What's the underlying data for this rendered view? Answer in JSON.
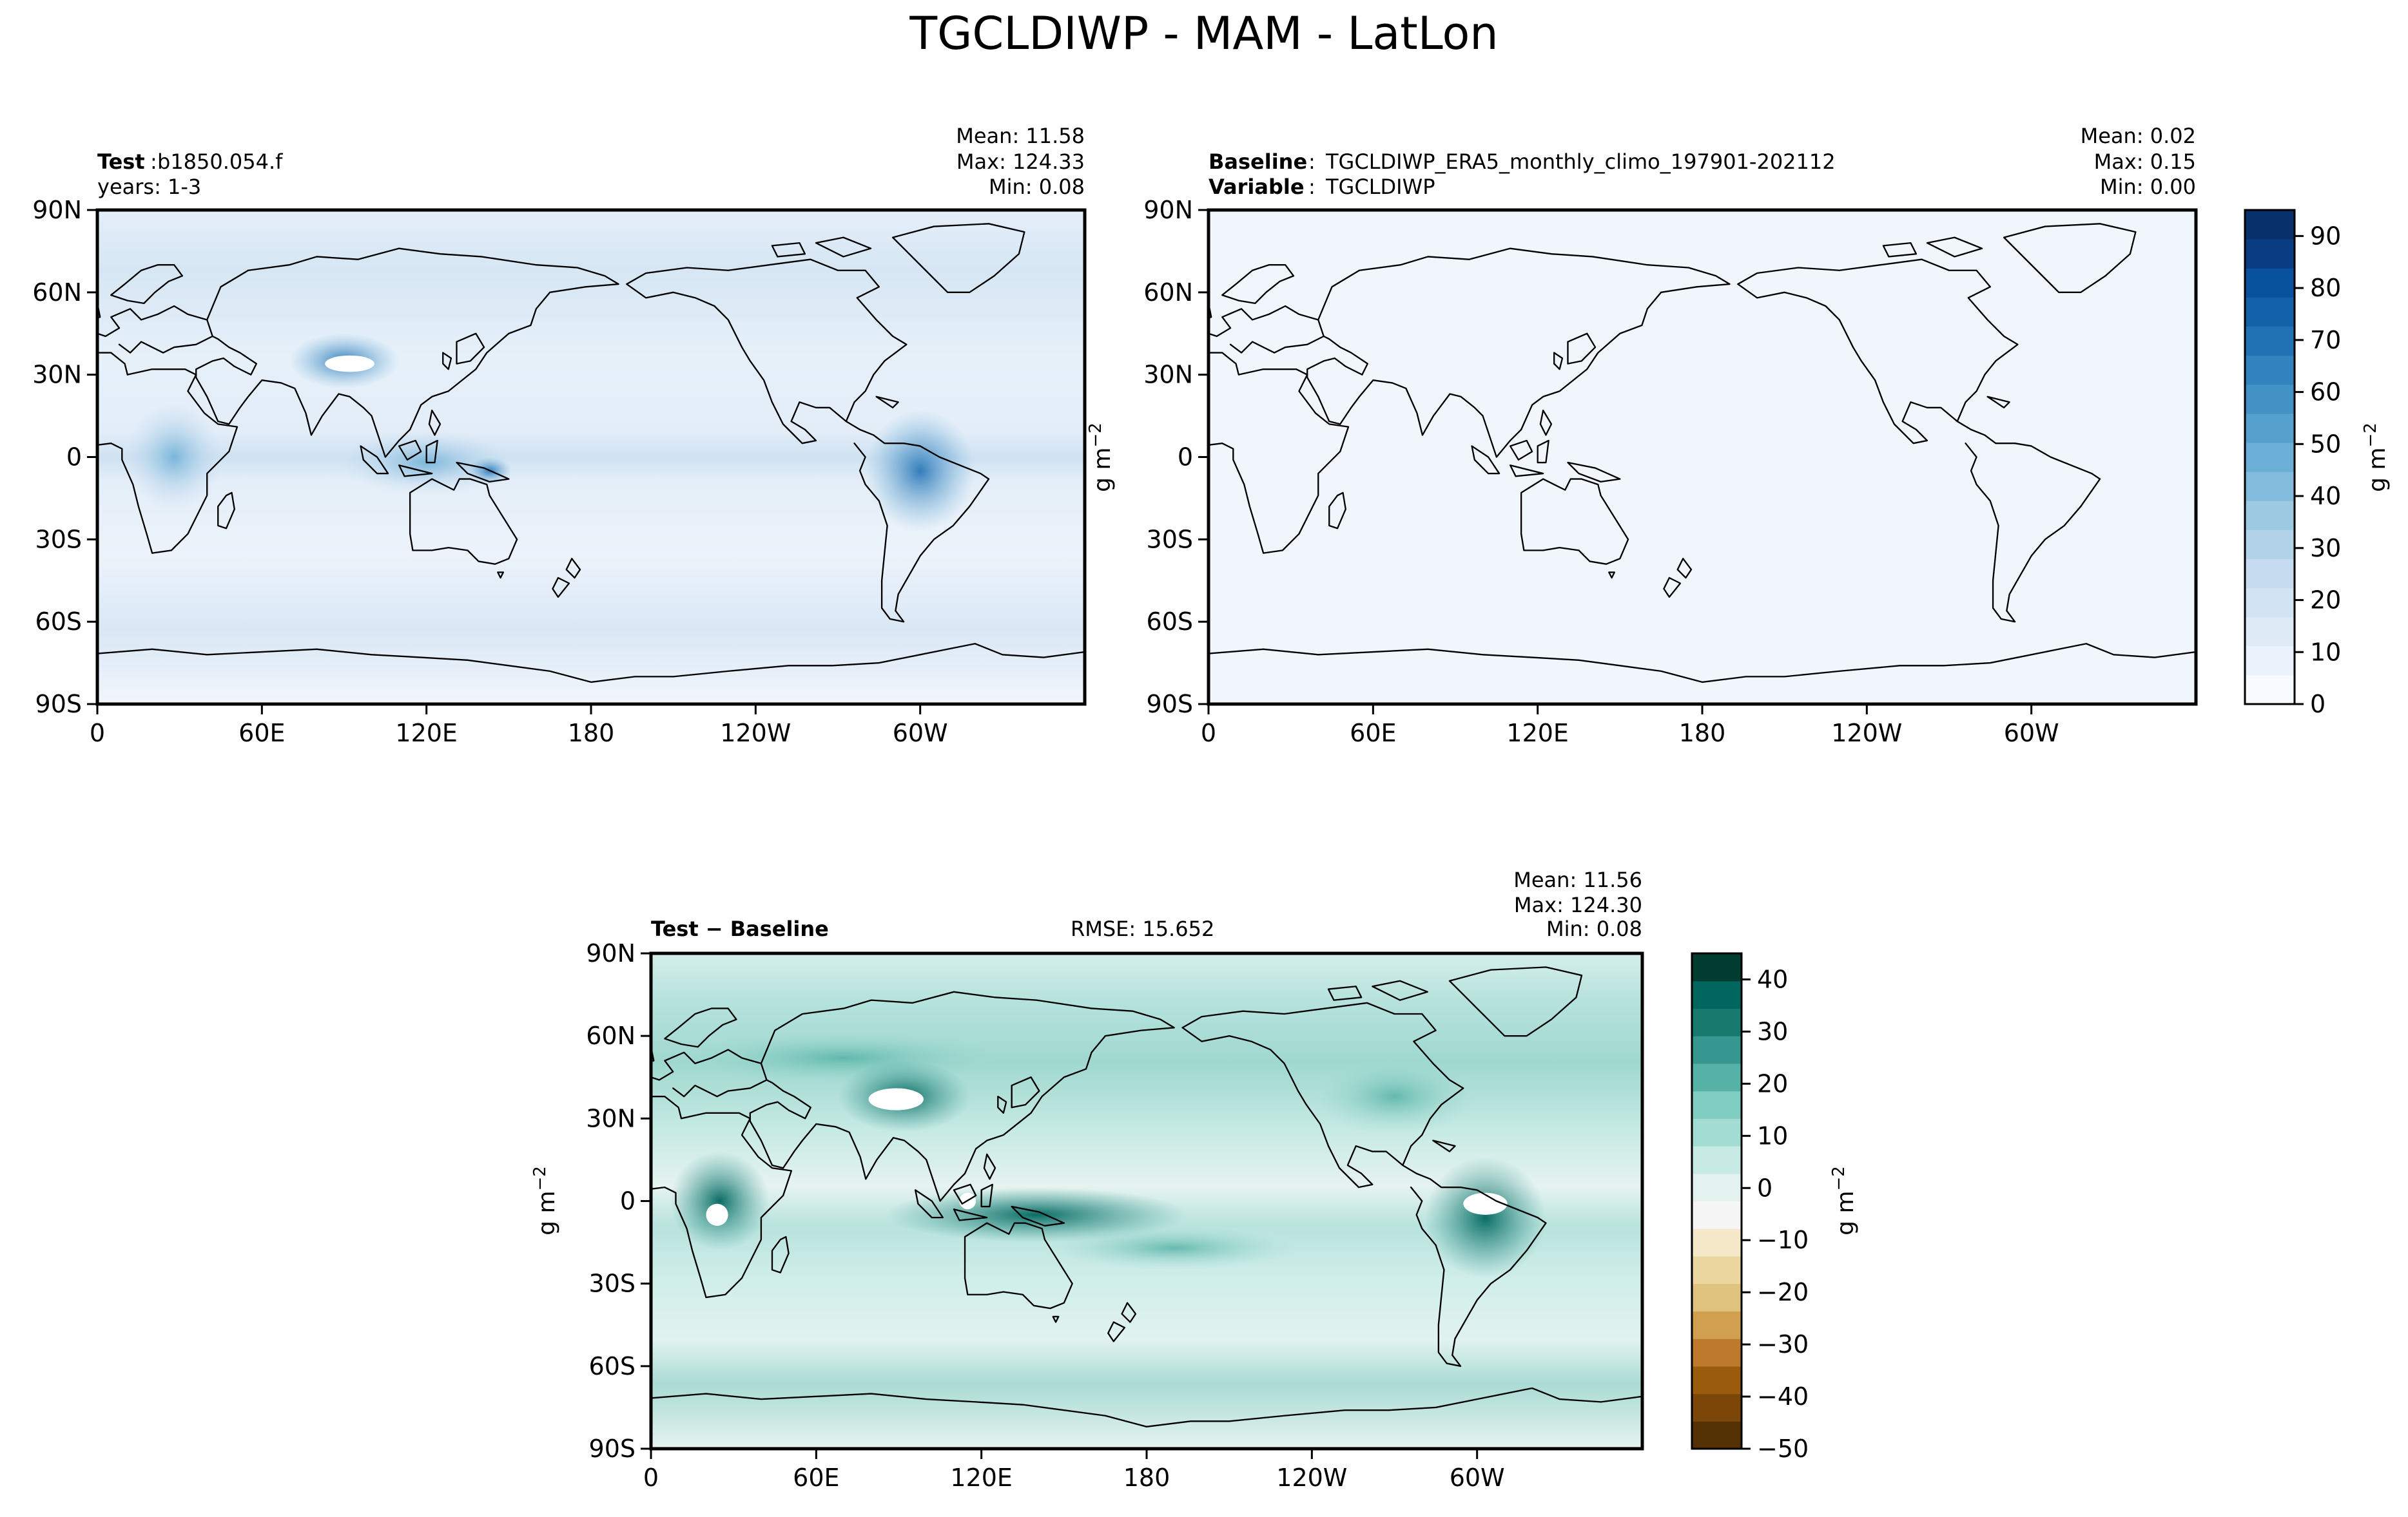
{
  "figure": {
    "title": "TGCLDIWP - MAM - LatLon"
  },
  "colors": {
    "blues": [
      "#f7fbff",
      "#eaf3fb",
      "#deebf7",
      "#d2e3f3",
      "#c6dbef",
      "#b2d2e8",
      "#9ecae1",
      "#82bbdb",
      "#6baed6",
      "#56a0ce",
      "#4292c6",
      "#3282be",
      "#2171b5",
      "#1361a9",
      "#08519c",
      "#083e81",
      "#08306b"
    ],
    "brbg": [
      "#543005",
      "#7b4607",
      "#9a5b0c",
      "#bd7a2c",
      "#d0a050",
      "#dfc27d",
      "#ecd69f",
      "#f5e8c8",
      "#f5f5f5",
      "#e3f2ef",
      "#c7eae5",
      "#a2dcd3",
      "#80cdc1",
      "#56b2a6",
      "#35978f",
      "#18796f",
      "#01665e",
      "#003c30"
    ],
    "land_outline": "#000000"
  },
  "chart_data": [
    {
      "type": "heatmap",
      "name": "test",
      "header": {
        "label_bold": "Test",
        "label_value": "b1850.054.f",
        "line2": "years: 1-3"
      },
      "stats": {
        "mean": "Mean: 11.58",
        "max": "Max: 124.33",
        "min": "Min:  0.08"
      },
      "xticks": [
        "0",
        "60E",
        "120E",
        "180",
        "120W",
        "60W"
      ],
      "yticks": [
        "90N",
        "60N",
        "30N",
        "0",
        "30S",
        "60S",
        "90S"
      ],
      "xlim": [
        0,
        360
      ],
      "ylim": [
        -90,
        90
      ],
      "colorbar": "shared_blues"
    },
    {
      "type": "heatmap",
      "name": "baseline",
      "header": {
        "label_bold": "Baseline",
        "label_value": "TGCLDIWP_ERA5_monthly_climo_197901-202112",
        "line2_bold": "Variable",
        "line2_value": "TGCLDIWP"
      },
      "stats": {
        "mean": "Mean:  0.02",
        "max": "Max:  0.15",
        "min": "Min:  0.00"
      },
      "xticks": [
        "0",
        "60E",
        "120E",
        "180",
        "120W",
        "60W"
      ],
      "yticks": [
        "90N",
        "60N",
        "30N",
        "0",
        "30S",
        "60S",
        "90S"
      ],
      "ylabel": "g m$^{-2}$",
      "xlim": [
        0,
        360
      ],
      "ylim": [
        -90,
        90
      ],
      "colorbar": "shared_blues"
    },
    {
      "type": "heatmap",
      "name": "difference",
      "header": {
        "label_bold": "Test − Baseline",
        "rmse": "RMSE: 15.652"
      },
      "stats": {
        "mean": "Mean: 11.56",
        "max": "Max: 124.30",
        "min": "Min:  0.08"
      },
      "xticks": [
        "0",
        "60E",
        "120E",
        "180",
        "120W",
        "60W"
      ],
      "yticks": [
        "90N",
        "60N",
        "30N",
        "0",
        "30S",
        "60S",
        "90S"
      ],
      "ylabel": "g m$^{-2}$",
      "xlim": [
        0,
        360
      ],
      "ylim": [
        -90,
        90
      ],
      "colorbar": "diff_brbg"
    }
  ],
  "colorbars": {
    "shared_blues": {
      "ticks": [
        "0",
        "10",
        "20",
        "30",
        "40",
        "50",
        "60",
        "70",
        "80",
        "90"
      ],
      "range": [
        0,
        95
      ],
      "label": "g m$^{-2}$"
    },
    "diff_brbg": {
      "ticks": [
        "−50",
        "−40",
        "−30",
        "−20",
        "−10",
        "0",
        "10",
        "20",
        "30",
        "40"
      ],
      "range": [
        -50,
        45
      ],
      "label": "g m$^{-2}$"
    }
  }
}
